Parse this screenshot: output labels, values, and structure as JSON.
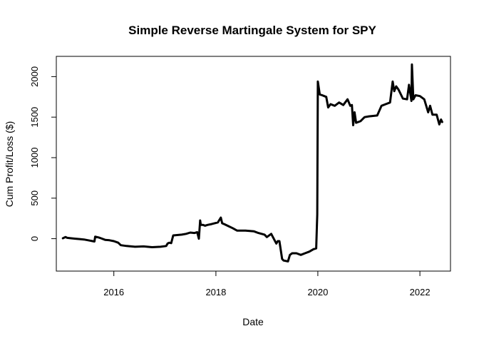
{
  "chart_data": {
    "type": "line",
    "title": "Simple Reverse Martingale System for SPY",
    "xlabel": "Date",
    "ylabel": "Cum Profit/Loss ($)",
    "xlim": [
      "2014-11-15",
      "2022-08-08"
    ],
    "ylim": [
      -400,
      2250
    ],
    "x_ticks": [
      {
        "value": "2016-01-01",
        "label": "2016"
      },
      {
        "value": "2018-01-01",
        "label": "2018"
      },
      {
        "value": "2020-01-01",
        "label": "2020"
      },
      {
        "value": "2022-01-01",
        "label": "2022"
      }
    ],
    "y_ticks": [
      {
        "value": 0,
        "label": "0"
      },
      {
        "value": 500,
        "label": "500"
      },
      {
        "value": 1000,
        "label": "1000"
      },
      {
        "value": 1500,
        "label": "1500"
      },
      {
        "value": 2000,
        "label": "2000"
      }
    ],
    "grid": false,
    "line_color": "#000000",
    "series": [
      {
        "x": [
          "2015-01-01",
          "2015-01-20",
          "2015-02-01",
          "2015-03-01",
          "2015-04-01",
          "2015-05-01",
          "2015-06-01",
          "2015-07-01",
          "2015-08-15",
          "2015-08-20",
          "2015-09-15",
          "2015-10-01",
          "2015-11-01",
          "2015-12-01",
          "2016-01-01",
          "2016-02-01",
          "2016-02-20",
          "2016-04-01",
          "2016-06-01",
          "2016-08-01",
          "2016-10-01",
          "2016-12-01",
          "2017-01-10",
          "2017-01-20",
          "2017-02-01",
          "2017-02-15",
          "2017-03-01",
          "2017-05-01",
          "2017-06-01",
          "2017-07-01",
          "2017-08-01",
          "2017-08-20",
          "2017-09-01",
          "2017-09-10",
          "2017-09-15",
          "2017-10-01",
          "2017-10-15",
          "2017-11-01",
          "2017-12-01",
          "2018-01-15",
          "2018-02-05",
          "2018-02-15",
          "2018-03-01",
          "2018-04-01",
          "2018-05-01",
          "2018-06-01",
          "2018-08-01",
          "2018-10-01",
          "2018-11-01",
          "2018-12-15",
          "2019-01-01",
          "2019-02-01",
          "2019-03-10",
          "2019-03-20",
          "2019-04-01",
          "2019-04-20",
          "2019-05-01",
          "2019-06-01",
          "2019-06-15",
          "2019-07-01",
          "2019-08-01",
          "2019-09-01",
          "2019-10-01",
          "2019-11-01",
          "2019-12-01",
          "2019-12-20",
          "2019-12-28",
          "2020-01-01",
          "2020-01-15",
          "2020-02-01",
          "2020-03-01",
          "2020-03-15",
          "2020-04-01",
          "2020-05-01",
          "2020-06-01",
          "2020-07-01",
          "2020-08-01",
          "2020-08-20",
          "2020-09-01",
          "2020-09-10",
          "2020-09-20",
          "2020-10-01",
          "2020-11-01",
          "2020-12-01",
          "2021-01-01",
          "2021-03-01",
          "2021-04-01",
          "2021-05-01",
          "2021-06-01",
          "2021-06-20",
          "2021-07-01",
          "2021-07-15",
          "2021-08-01",
          "2021-09-01",
          "2021-10-01",
          "2021-10-15",
          "2021-11-01",
          "2021-11-05",
          "2021-11-15",
          "2021-12-01",
          "2022-01-01",
          "2022-02-01",
          "2022-03-01",
          "2022-03-15",
          "2022-04-01",
          "2022-05-01",
          "2022-05-20",
          "2022-06-01",
          "2022-06-10"
        ],
        "y": [
          5,
          20,
          10,
          5,
          0,
          -5,
          -10,
          -20,
          -35,
          25,
          15,
          5,
          -15,
          -20,
          -30,
          -50,
          -80,
          -90,
          -100,
          -95,
          -105,
          -100,
          -90,
          -60,
          -50,
          -55,
          40,
          50,
          60,
          75,
          70,
          80,
          0,
          225,
          170,
          170,
          160,
          170,
          180,
          200,
          260,
          190,
          180,
          155,
          130,
          100,
          100,
          90,
          70,
          50,
          20,
          60,
          -60,
          -30,
          -30,
          -250,
          -270,
          -280,
          -200,
          -180,
          -180,
          -200,
          -180,
          -160,
          -130,
          -120,
          300,
          1940,
          1780,
          1770,
          1750,
          1620,
          1660,
          1640,
          1680,
          1650,
          1720,
          1640,
          1650,
          1400,
          1560,
          1430,
          1450,
          1500,
          1510,
          1520,
          1640,
          1660,
          1680,
          1940,
          1820,
          1880,
          1840,
          1730,
          1720,
          1900,
          1700,
          2150,
          1720,
          1770,
          1760,
          1720,
          1560,
          1640,
          1530,
          1530,
          1410,
          1470,
          1440
        ]
      }
    ]
  }
}
